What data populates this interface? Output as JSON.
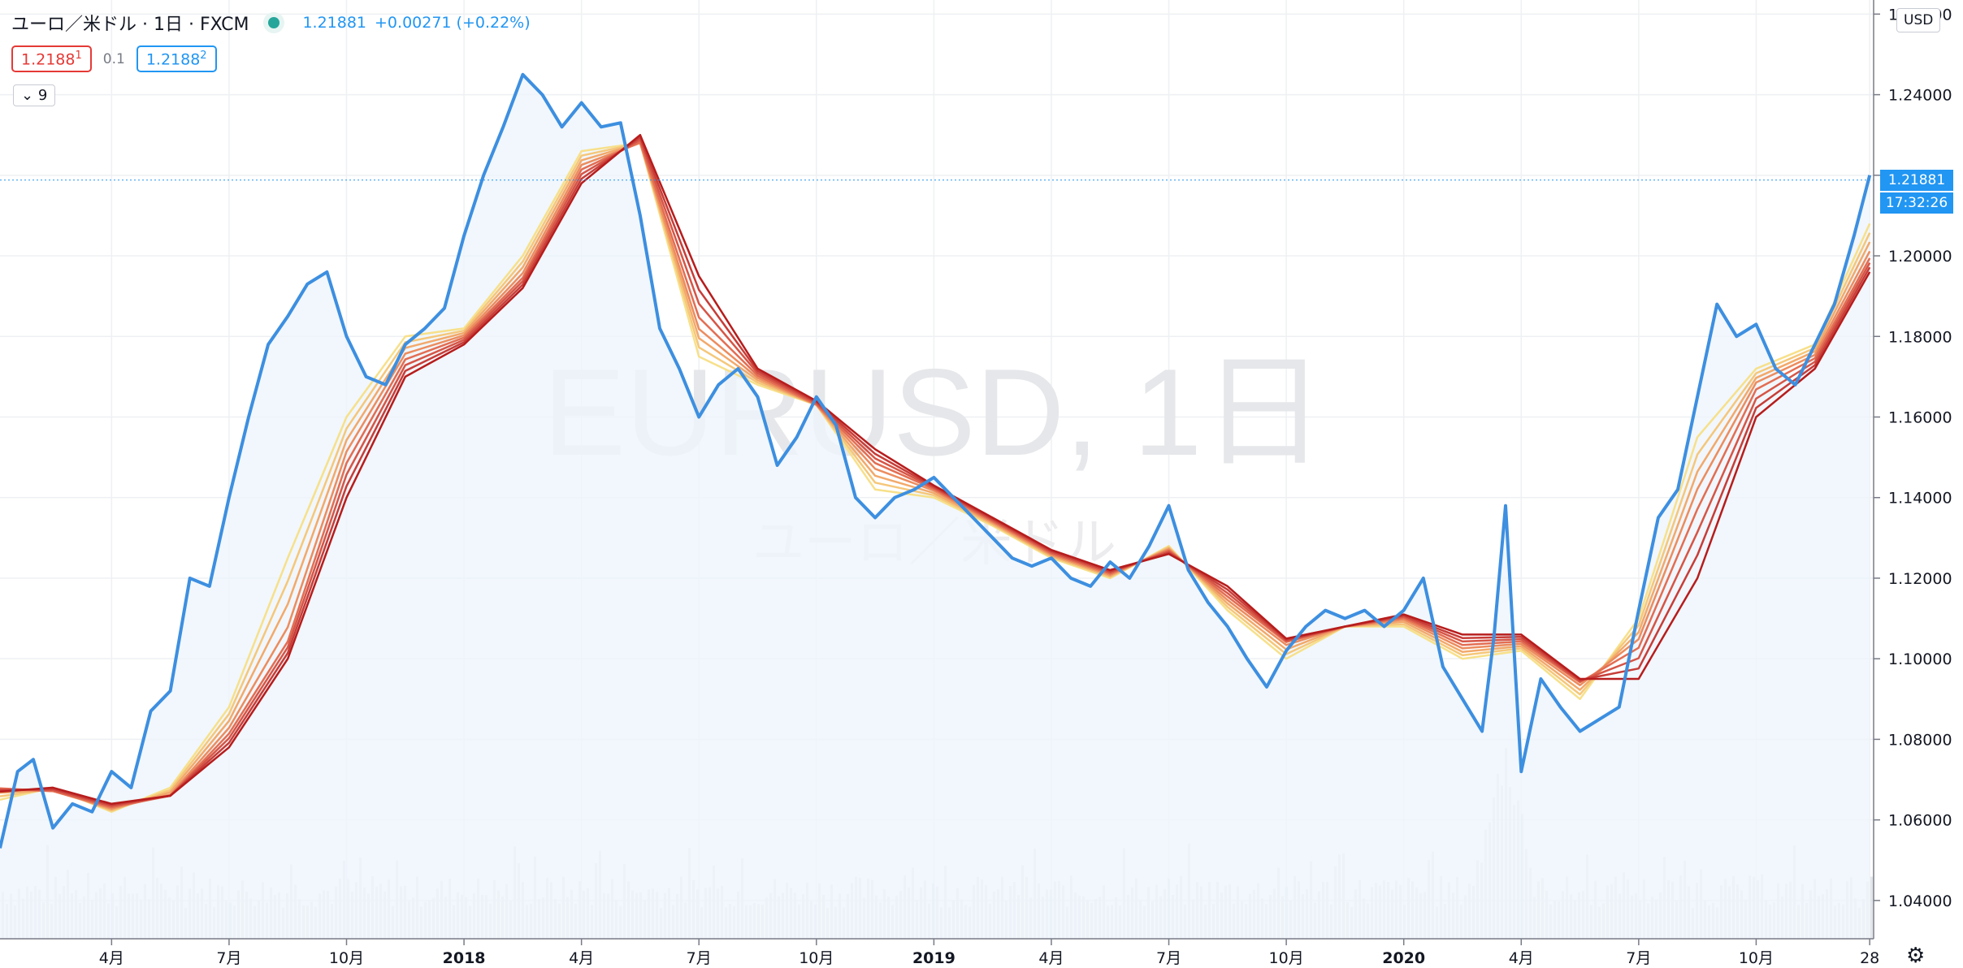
{
  "header": {
    "symbol": "ユーロ／米ドル · 1日 · FXCM",
    "price": "1.21881",
    "change": "+0.00271 (+0.22%)",
    "bid": "1.2188",
    "bid_sup": "1",
    "spread": "0.1",
    "ask": "1.2188",
    "ask_sup": "2",
    "indicators_toggle": "9",
    "currency_button": "USD"
  },
  "watermark": {
    "main": "EURUSD, 1日",
    "sub": "ユーロ／米ドル"
  },
  "price_label": {
    "value": "1.21881",
    "countdown": "17:32:26"
  },
  "colors": {
    "price_line": "#3d8fe0",
    "area_fill": "#eef5fb",
    "volume": "#d7dbe3",
    "ribbon_fast": "#f7e08a",
    "ribbon_slow": "#b71c1c"
  },
  "chart_data": {
    "type": "line",
    "x_ticks": [
      {
        "label": "4月",
        "t": 3
      },
      {
        "label": "7月",
        "t": 6
      },
      {
        "label": "10月",
        "t": 9
      },
      {
        "label": "2018",
        "t": 12
      },
      {
        "label": "4月",
        "t": 15
      },
      {
        "label": "7月",
        "t": 18
      },
      {
        "label": "10月",
        "t": 21
      },
      {
        "label": "2019",
        "t": 24
      },
      {
        "label": "4月",
        "t": 27
      },
      {
        "label": "7月",
        "t": 30
      },
      {
        "label": "10月",
        "t": 33
      },
      {
        "label": "2020",
        "t": 36
      },
      {
        "label": "4月",
        "t": 39
      },
      {
        "label": "7月",
        "t": 42
      },
      {
        "label": "10月",
        "t": 45
      },
      {
        "label": "28",
        "t": 47.9
      }
    ],
    "xlim": [
      0.15,
      48
    ],
    "y_ticks": [
      1.04,
      1.06,
      1.08,
      1.1,
      1.12,
      1.14,
      1.16,
      1.18,
      1.2,
      1.22,
      1.24,
      1.26
    ],
    "y_tick_labels": [
      "1.04000",
      "1.06000",
      "1.08000",
      "1.10000",
      "1.12000",
      "1.14000",
      "1.16000",
      "1.18000",
      "1.20000",
      "1.22000",
      "1.24000",
      "1.26000"
    ],
    "ylim": [
      1.0305,
      1.2635
    ],
    "series": [
      {
        "values_t": [
          0.15,
          0.6,
          1.0,
          1.5,
          2.0,
          2.5,
          3.0,
          3.5,
          4.0,
          4.5,
          5.0,
          5.5,
          6.0,
          6.5,
          7.0,
          7.5,
          8.0,
          8.5,
          9.0,
          9.5,
          10.0,
          10.5,
          11.0,
          11.5,
          12.0,
          12.5,
          13.0,
          13.5,
          14.0,
          14.5,
          15.0,
          15.5,
          16.0,
          16.5,
          17.0,
          17.5,
          18.0,
          18.5,
          19.0,
          19.5,
          20.0,
          20.5,
          21.0,
          21.5,
          22.0,
          22.5,
          23.0,
          23.5,
          24.0,
          24.5,
          25.0,
          25.5,
          26.0,
          26.5,
          27.0,
          27.5,
          28.0,
          28.5,
          29.0,
          29.5,
          30.0,
          30.5,
          31.0,
          31.5,
          32.0,
          32.5,
          33.0,
          33.5,
          34.0,
          34.5,
          35.0,
          35.5,
          36.0,
          36.5,
          37.0,
          37.5,
          38.0,
          38.3,
          38.6,
          39.0,
          39.5,
          40.0,
          40.5,
          41.0,
          41.5,
          42.0,
          42.5,
          43.0,
          43.5,
          44.0,
          44.5,
          45.0,
          45.5,
          46.0,
          46.5,
          47.0,
          47.5,
          47.9
        ],
        "values": [
          1.053,
          1.072,
          1.075,
          1.058,
          1.064,
          1.062,
          1.072,
          1.068,
          1.087,
          1.092,
          1.12,
          1.118,
          1.14,
          1.16,
          1.178,
          1.185,
          1.193,
          1.196,
          1.18,
          1.17,
          1.168,
          1.178,
          1.182,
          1.187,
          1.205,
          1.22,
          1.232,
          1.245,
          1.24,
          1.232,
          1.238,
          1.232,
          1.233,
          1.21,
          1.182,
          1.172,
          1.16,
          1.168,
          1.172,
          1.165,
          1.148,
          1.155,
          1.165,
          1.158,
          1.14,
          1.135,
          1.14,
          1.142,
          1.145,
          1.14,
          1.135,
          1.13,
          1.125,
          1.123,
          1.125,
          1.12,
          1.118,
          1.124,
          1.12,
          1.128,
          1.138,
          1.122,
          1.114,
          1.108,
          1.1,
          1.093,
          1.102,
          1.108,
          1.112,
          1.11,
          1.112,
          1.108,
          1.112,
          1.12,
          1.098,
          1.09,
          1.082,
          1.105,
          1.138,
          1.072,
          1.095,
          1.088,
          1.082,
          1.085,
          1.088,
          1.112,
          1.135,
          1.142,
          1.165,
          1.188,
          1.18,
          1.183,
          1.172,
          1.168,
          1.178,
          1.188,
          1.205,
          1.22
        ],
        "line": "price"
      },
      {
        "name": "",
        "values_t": [
          0.15,
          1.5,
          3.0,
          4.5,
          6.0,
          7.5,
          9.0,
          10.5,
          12.0,
          13.5,
          15.0,
          16.5,
          18.0,
          19.5,
          21.0,
          22.5,
          24.0,
          25.5,
          27.0,
          28.5,
          30.0,
          31.5,
          33.0,
          34.5,
          36.0,
          37.5,
          39.0,
          40.5,
          42.0,
          43.5,
          45.0,
          46.5,
          47.9
        ],
        "values": [
          1.065,
          1.068,
          1.062,
          1.068,
          1.088,
          1.125,
          1.16,
          1.18,
          1.182,
          1.2,
          1.226,
          1.228,
          1.175,
          1.168,
          1.163,
          1.142,
          1.14,
          1.133,
          1.125,
          1.12,
          1.128,
          1.112,
          1.1,
          1.108,
          1.108,
          1.1,
          1.102,
          1.09,
          1.11,
          1.155,
          1.172,
          1.178,
          1.208
        ],
        "line": "ribbon-fast"
      },
      {
        "name": "",
        "values_t": [
          0.15,
          1.5,
          3.0,
          4.5,
          6.0,
          7.5,
          9.0,
          10.5,
          12.0,
          13.5,
          15.0,
          16.5,
          18.0,
          19.5,
          21.0,
          22.5,
          24.0,
          25.5,
          27.0,
          28.5,
          30.0,
          31.5,
          33.0,
          34.5,
          36.0,
          37.5,
          39.0,
          40.5,
          42.0,
          43.5,
          45.0,
          46.5,
          47.9
        ],
        "values": [
          1.068,
          1.067,
          1.063,
          1.066,
          1.082,
          1.105,
          1.15,
          1.175,
          1.18,
          1.195,
          1.222,
          1.228,
          1.183,
          1.17,
          1.163,
          1.148,
          1.142,
          1.134,
          1.126,
          1.121,
          1.127,
          1.115,
          1.104,
          1.108,
          1.11,
          1.103,
          1.104,
          1.094,
          1.104,
          1.14,
          1.168,
          1.175,
          1.2
        ],
        "line": "ribbon-mid"
      },
      {
        "name": "",
        "values_t": [
          0.15,
          1.5,
          3.0,
          4.5,
          6.0,
          7.5,
          9.0,
          10.5,
          12.0,
          13.5,
          15.0,
          16.5,
          18.0,
          19.5,
          21.0,
          22.5,
          24.0,
          25.5,
          27.0,
          28.5,
          30.0,
          31.5,
          33.0,
          34.5,
          36.0,
          37.5,
          39.0,
          40.5,
          42.0,
          43.5,
          45.0,
          46.5,
          47.9
        ],
        "values": [
          1.067,
          1.068,
          1.064,
          1.066,
          1.078,
          1.1,
          1.14,
          1.17,
          1.178,
          1.192,
          1.218,
          1.23,
          1.195,
          1.172,
          1.164,
          1.152,
          1.143,
          1.135,
          1.127,
          1.122,
          1.126,
          1.118,
          1.105,
          1.108,
          1.111,
          1.106,
          1.106,
          1.095,
          1.095,
          1.12,
          1.16,
          1.172,
          1.196
        ],
        "line": "ribbon-slow"
      }
    ]
  }
}
